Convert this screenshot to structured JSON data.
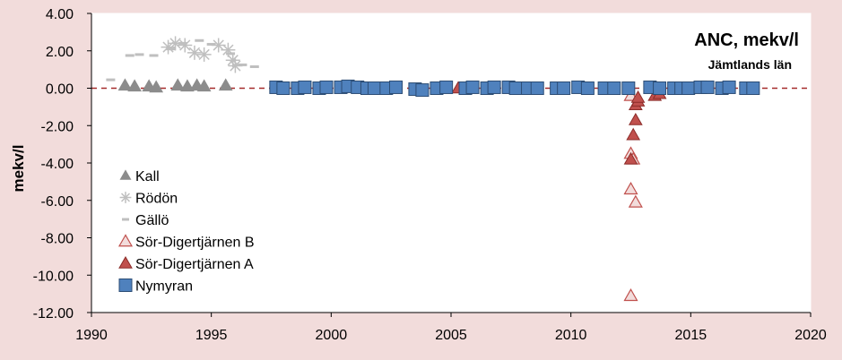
{
  "chart_data": {
    "type": "scatter",
    "title": "ANC, mekv/l",
    "subtitle": "Jämtlands län",
    "ylabel": "mekv/l",
    "xlabel": "",
    "xlim": [
      1990,
      2020
    ],
    "ylim": [
      -12,
      4
    ],
    "xticks": [
      "1990",
      "1995",
      "2000",
      "2005",
      "2010",
      "2015",
      "2020"
    ],
    "yticks": [
      "4.00",
      "2.00",
      "0.00",
      "-2.00",
      "-4.00",
      "-6.00",
      "-8.00",
      "-10.00",
      "-12.00"
    ],
    "grid": false,
    "reference_line": 0,
    "legend_position": "left",
    "series": [
      {
        "name": "Kall",
        "marker": "triangle",
        "color": "#8c8c8c",
        "points": [
          [
            1991.4,
            0.15
          ],
          [
            1991.8,
            0.1
          ],
          [
            1992.4,
            0.1
          ],
          [
            1992.7,
            0.05
          ],
          [
            1993.6,
            0.15
          ],
          [
            1994.0,
            0.1
          ],
          [
            1994.4,
            0.15
          ],
          [
            1994.7,
            0.1
          ],
          [
            1995.6,
            0.15
          ]
        ]
      },
      {
        "name": "Rödön",
        "marker": "star",
        "color": "#bfbfbf",
        "points": [
          [
            1993.2,
            2.2
          ],
          [
            1993.5,
            2.4
          ],
          [
            1993.9,
            2.3
          ],
          [
            1994.3,
            1.9
          ],
          [
            1994.7,
            1.8
          ],
          [
            1995.3,
            2.3
          ],
          [
            1995.7,
            2.05
          ],
          [
            1995.9,
            1.5
          ],
          [
            1996.0,
            1.2
          ]
        ]
      },
      {
        "name": "Gällö",
        "marker": "dash",
        "color": "#bfbfbf",
        "points": [
          [
            1990.8,
            0.45
          ],
          [
            1991.6,
            1.75
          ],
          [
            1992.0,
            1.8
          ],
          [
            1992.6,
            1.75
          ],
          [
            1993.3,
            2.1
          ],
          [
            1993.8,
            2.4
          ],
          [
            1994.5,
            2.55
          ],
          [
            1995.0,
            2.35
          ],
          [
            1995.8,
            1.85
          ],
          [
            1996.3,
            1.25
          ],
          [
            1996.8,
            1.15
          ]
        ]
      },
      {
        "name": "Sör-Digertjärnen B",
        "marker": "triangle-open",
        "color": "#c0504d",
        "points": [
          [
            2012.5,
            -11.1
          ],
          [
            2012.5,
            -5.4
          ],
          [
            2012.7,
            -6.1
          ],
          [
            2012.5,
            -3.5
          ],
          [
            2012.6,
            -3.8
          ],
          [
            2012.5,
            -0.4
          ]
        ]
      },
      {
        "name": "Sör-Digertjärnen A",
        "marker": "triangle",
        "color": "#c0504d",
        "points": [
          [
            2005.3,
            0.0
          ],
          [
            2012.5,
            -3.8
          ],
          [
            2012.6,
            -2.5
          ],
          [
            2012.7,
            -1.7
          ],
          [
            2012.7,
            -0.9
          ],
          [
            2012.8,
            -0.7
          ],
          [
            2012.8,
            -0.5
          ],
          [
            2013.5,
            -0.4
          ],
          [
            2013.7,
            -0.3
          ]
        ]
      },
      {
        "name": "Nymyran",
        "marker": "square",
        "color": "#4f81bd",
        "points": [
          [
            1997.7,
            0.05
          ],
          [
            1998.0,
            0.0
          ],
          [
            1998.6,
            0.0
          ],
          [
            1998.9,
            0.05
          ],
          [
            1999.5,
            0.0
          ],
          [
            1999.8,
            0.05
          ],
          [
            2000.4,
            0.05
          ],
          [
            2000.7,
            0.1
          ],
          [
            2001.1,
            0.05
          ],
          [
            2001.5,
            0.0
          ],
          [
            2001.8,
            0.0
          ],
          [
            2002.3,
            0.0
          ],
          [
            2002.7,
            0.05
          ],
          [
            2003.5,
            -0.05
          ],
          [
            2003.8,
            -0.1
          ],
          [
            2004.4,
            0.0
          ],
          [
            2004.8,
            0.05
          ],
          [
            2005.6,
            0.0
          ],
          [
            2005.9,
            0.05
          ],
          [
            2006.5,
            0.0
          ],
          [
            2006.8,
            0.05
          ],
          [
            2007.4,
            0.05
          ],
          [
            2007.7,
            0.0
          ],
          [
            2008.2,
            0.0
          ],
          [
            2008.6,
            0.0
          ],
          [
            2009.4,
            0.0
          ],
          [
            2009.7,
            0.0
          ],
          [
            2010.3,
            0.05
          ],
          [
            2010.7,
            0.0
          ],
          [
            2011.4,
            0.0
          ],
          [
            2011.8,
            0.0
          ],
          [
            2012.4,
            0.0
          ],
          [
            2013.3,
            0.05
          ],
          [
            2013.7,
            0.0
          ],
          [
            2014.3,
            0.0
          ],
          [
            2014.6,
            0.0
          ],
          [
            2014.9,
            0.0
          ],
          [
            2015.4,
            0.05
          ],
          [
            2015.7,
            0.05
          ],
          [
            2016.3,
            0.0
          ],
          [
            2016.6,
            0.05
          ],
          [
            2017.3,
            0.0
          ],
          [
            2017.6,
            0.0
          ]
        ]
      }
    ]
  }
}
